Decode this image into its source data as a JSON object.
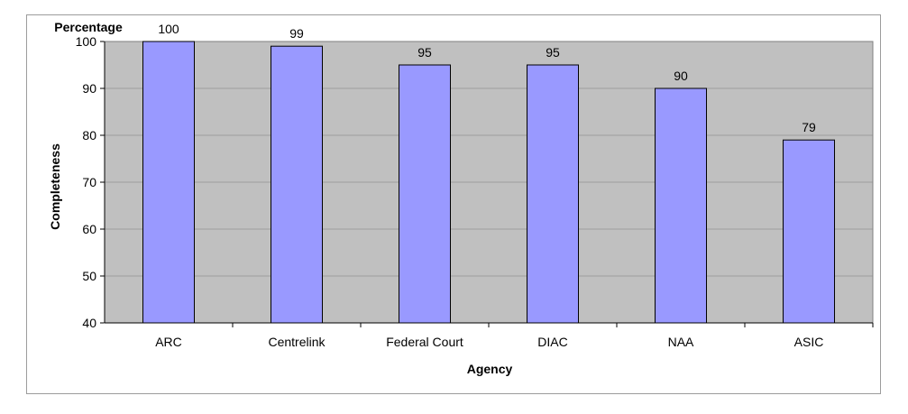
{
  "chart_data": {
    "type": "bar",
    "categories": [
      "ARC",
      "Centrelink",
      "Federal Court",
      "DIAC",
      "NAA",
      "ASIC"
    ],
    "values": [
      100,
      99,
      95,
      95,
      90,
      79
    ],
    "data_labels": [
      "100",
      "99",
      "95",
      "95",
      "90",
      "79"
    ],
    "y_ticks": [
      "40",
      "50",
      "60",
      "70",
      "80",
      "90",
      "100"
    ],
    "ylim": [
      40,
      100
    ],
    "xlabel": "Agency",
    "ylabel": "Completeness",
    "ylabel_top": "Percentage",
    "grid": true,
    "legend": "none"
  },
  "colors": {
    "bar_fill": "#9999ff",
    "bar_stroke": "#000000",
    "plot_background": "#c0c0c0",
    "gridline": "#9e9e9e",
    "frame_border": "#9c9c9c"
  }
}
